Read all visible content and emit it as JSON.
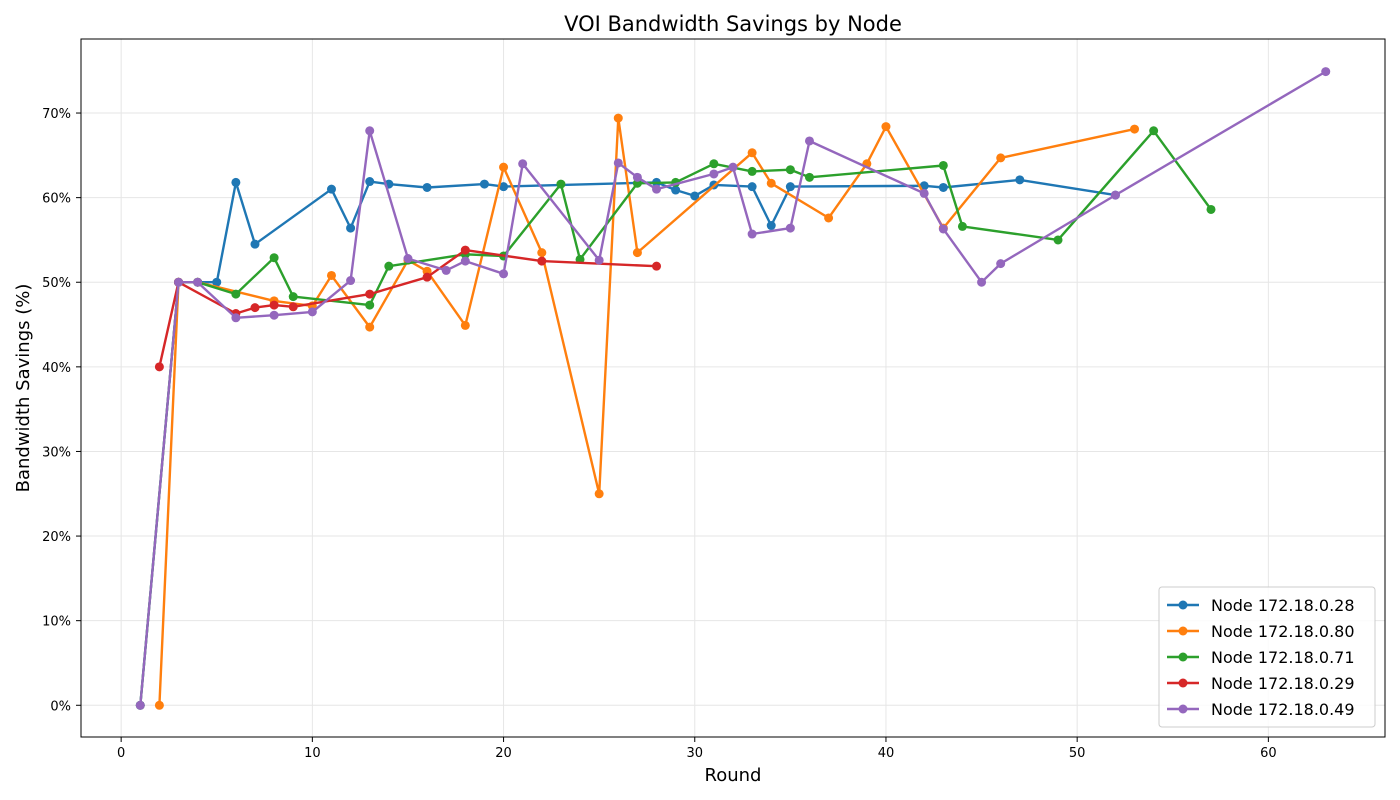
{
  "chart_data": {
    "type": "line",
    "title": "VOI Bandwidth Savings by Node",
    "xlabel": "Round",
    "ylabel": "Bandwidth Savings (%)",
    "xlim": [
      -2.1,
      66.1
    ],
    "ylim": [
      -3.75,
      78.75
    ],
    "xticks": [
      0,
      10,
      20,
      30,
      40,
      50,
      60
    ],
    "xtick_labels": [
      "0",
      "10",
      "20",
      "30",
      "40",
      "50",
      "60"
    ],
    "yticks": [
      0,
      10,
      20,
      30,
      40,
      50,
      60,
      70
    ],
    "ytick_labels": [
      "0%",
      "10%",
      "20%",
      "30%",
      "40%",
      "50%",
      "60%",
      "70%"
    ],
    "grid": true,
    "legend_position": "lower-right",
    "series": [
      {
        "name": "Node 172.18.0.28",
        "color": "#1f77b4",
        "x": [
          1,
          3,
          4,
          5,
          6,
          7,
          11,
          12,
          13,
          14,
          16,
          19,
          20,
          28,
          29,
          30,
          31,
          33,
          34,
          35,
          42,
          43,
          47,
          52
        ],
        "y": [
          0,
          50,
          50,
          50,
          61.8,
          54.5,
          61,
          56.4,
          61.9,
          61.6,
          61.2,
          61.6,
          61.3,
          61.8,
          60.9,
          60.2,
          61.5,
          61.3,
          56.7,
          61.3,
          61.4,
          61.2,
          62.1,
          60.3
        ]
      },
      {
        "name": "Node 172.18.0.80",
        "color": "#ff7f0e",
        "x": [
          2,
          3,
          4,
          8,
          10,
          11,
          13,
          15,
          16,
          18,
          20,
          22,
          25,
          26,
          27,
          33,
          34,
          37,
          39,
          40,
          43,
          46,
          53
        ],
        "y": [
          0,
          50,
          50,
          47.8,
          47.2,
          50.8,
          44.7,
          52.6,
          51.3,
          44.9,
          63.6,
          53.5,
          25,
          69.4,
          53.5,
          65.3,
          61.7,
          57.6,
          64,
          68.4,
          56.4,
          64.7,
          68.1
        ]
      },
      {
        "name": "Node 172.18.0.71",
        "color": "#2ca02c",
        "x": [
          1,
          3,
          4,
          6,
          8,
          9,
          13,
          14,
          18,
          20,
          23,
          24,
          27,
          29,
          31,
          33,
          35,
          36,
          43,
          44,
          49,
          54,
          57
        ],
        "y": [
          0,
          50,
          50,
          48.6,
          52.9,
          48.3,
          47.3,
          51.9,
          53.3,
          53.1,
          61.6,
          52.7,
          61.7,
          61.8,
          64,
          63.1,
          63.3,
          62.4,
          63.8,
          56.6,
          55,
          67.9,
          58.6
        ]
      },
      {
        "name": "Node 172.18.0.29",
        "color": "#d62728",
        "x": [
          2,
          3,
          6,
          7,
          8,
          9,
          13,
          16,
          18,
          22,
          28
        ],
        "y": [
          40,
          50,
          46.3,
          47,
          47.3,
          47.1,
          48.6,
          50.6,
          53.8,
          52.5,
          51.9
        ]
      },
      {
        "name": "Node 172.18.0.49",
        "color": "#9467bd",
        "x": [
          1,
          3,
          4,
          6,
          8,
          10,
          12,
          13,
          15,
          17,
          18,
          20,
          21,
          25,
          26,
          27,
          28,
          31,
          32,
          33,
          35,
          36,
          42,
          43,
          45,
          46,
          52,
          63
        ],
        "y": [
          0,
          50,
          50,
          45.8,
          46.1,
          46.5,
          50.2,
          67.9,
          52.8,
          51.4,
          52.5,
          51,
          64,
          52.6,
          64.1,
          62.4,
          61,
          62.8,
          63.6,
          55.7,
          56.4,
          66.7,
          60.5,
          56.3,
          50,
          52.2,
          60.3,
          74.9
        ]
      }
    ]
  }
}
